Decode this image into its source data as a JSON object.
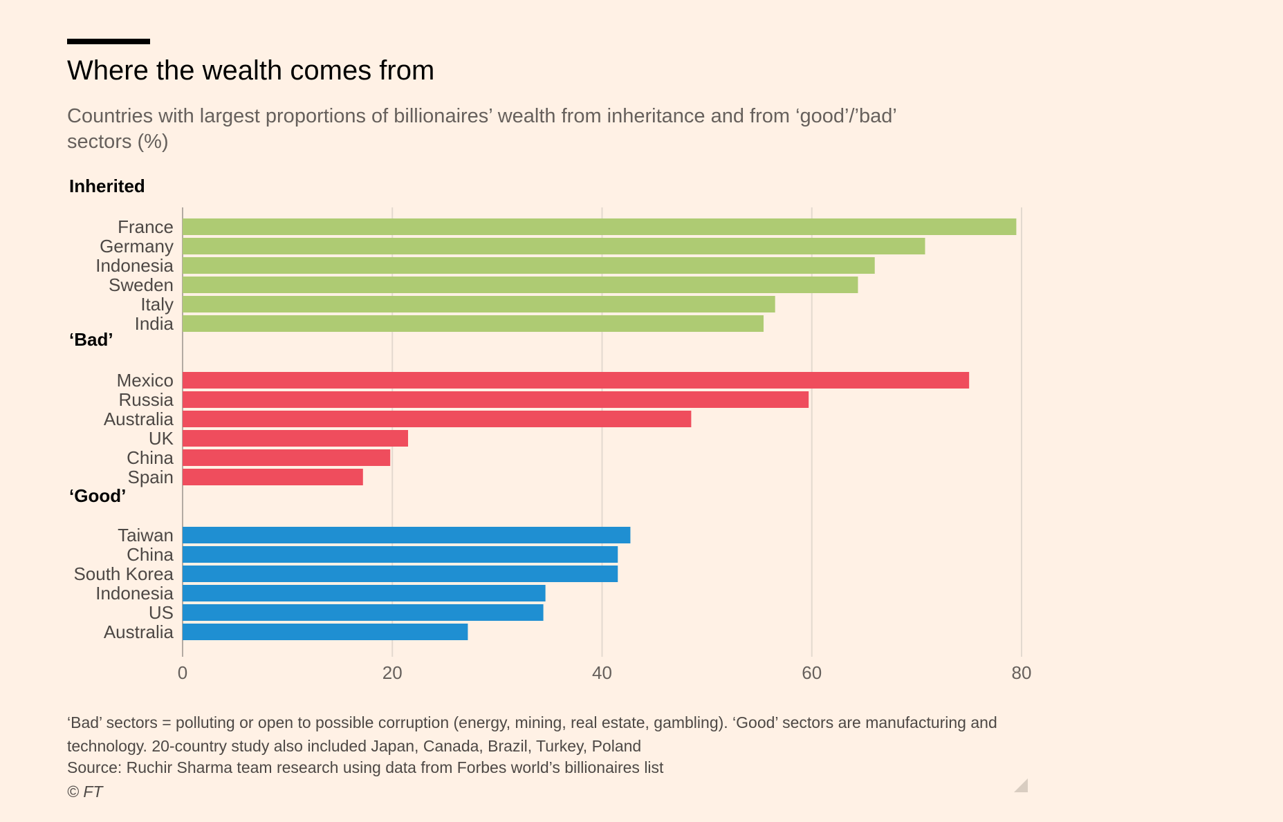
{
  "title": "Where the wealth comes from",
  "subtitle": "Countries with largest proportions of billionaires’ wealth from inheritance and from ‘good’/’bad’ sectors (%)",
  "notes": "‘Bad’ sectors = polluting or open to possible corruption (energy, mining, real estate, gambling). ‘Good’ sectors are manufacturing and technology. 20-country study also included Japan, Canada, Brazil, Turkey, Poland",
  "source": "Source: Ruchir Sharma team research using data from Forbes world’s billionaires list",
  "credit": "© FT",
  "colors": {
    "inherited": "#aecb73",
    "bad": "#ef4d5d",
    "good": "#1f8fd2",
    "grid": "#e3d9cf",
    "axis_text": "#66605c",
    "label_text": "#4d4845"
  },
  "chart_data": {
    "type": "bar",
    "orientation": "horizontal",
    "xlim": [
      0,
      80
    ],
    "xticks": [
      "0",
      "20",
      "40",
      "60",
      "80"
    ],
    "grid": true,
    "groups": [
      {
        "name": "Inherited",
        "color_key": "inherited",
        "categories": [
          "France",
          "Germany",
          "Indonesia",
          "Sweden",
          "Italy",
          "India"
        ],
        "values": [
          79.5,
          70.8,
          66,
          64.4,
          56.5,
          55.4
        ]
      },
      {
        "name": "‘Bad’",
        "color_key": "bad",
        "categories": [
          "Mexico",
          "Russia",
          "Australia",
          "UK",
          "China",
          "Spain"
        ],
        "values": [
          75,
          59.7,
          48.5,
          21.5,
          19.8,
          17.2
        ]
      },
      {
        "name": "‘Good’",
        "color_key": "good",
        "categories": [
          "Taiwan",
          "China",
          "South Korea",
          "Indonesia",
          "US",
          "Australia"
        ],
        "values": [
          42.7,
          41.5,
          41.5,
          34.6,
          34.4,
          27.2
        ]
      }
    ]
  }
}
